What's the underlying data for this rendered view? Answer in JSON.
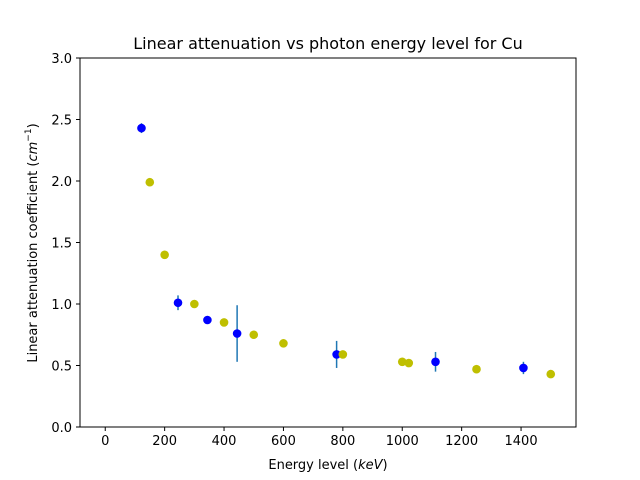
{
  "chart_data": {
    "type": "scatter",
    "title": "Linear attenuation vs photon energy level for Cu",
    "xlabel_prefix": "Energy level (",
    "xlabel_unit": "keV",
    "xlabel_suffix": ")",
    "ylabel_prefix": "Linear attenuation coefficient (",
    "ylabel_unit": "cm",
    "ylabel_exp": "−1",
    "ylabel_suffix": ")",
    "xlim": [
      -85,
      1585
    ],
    "ylim": [
      0.0,
      3.0
    ],
    "x_ticks": [
      0,
      200,
      400,
      600,
      800,
      1000,
      1200,
      1400
    ],
    "y_ticks": [
      "0.0",
      "0.5",
      "1.0",
      "1.5",
      "2.0",
      "2.5",
      "3.0"
    ],
    "grid": false,
    "series": [
      {
        "color": "#0000ff",
        "errorbar_color": "#1f77b4",
        "points": [
          {
            "x": 122,
            "y": 2.43,
            "err": 0.04
          },
          {
            "x": 245,
            "y": 1.01,
            "err": 0.06
          },
          {
            "x": 344,
            "y": 0.87,
            "err": 0.02
          },
          {
            "x": 444,
            "y": 0.76,
            "err": 0.23
          },
          {
            "x": 779,
            "y": 0.59,
            "err": 0.11
          },
          {
            "x": 1112,
            "y": 0.53,
            "err": 0.08
          },
          {
            "x": 1408,
            "y": 0.48,
            "err": 0.05
          }
        ]
      },
      {
        "color": "#bfbf00",
        "points": [
          {
            "x": 150,
            "y": 1.99
          },
          {
            "x": 200,
            "y": 1.4
          },
          {
            "x": 300,
            "y": 1.0
          },
          {
            "x": 400,
            "y": 0.85
          },
          {
            "x": 500,
            "y": 0.75
          },
          {
            "x": 600,
            "y": 0.68
          },
          {
            "x": 800,
            "y": 0.59
          },
          {
            "x": 1000,
            "y": 0.53
          },
          {
            "x": 1022,
            "y": 0.52
          },
          {
            "x": 1250,
            "y": 0.47
          },
          {
            "x": 1500,
            "y": 0.43
          }
        ]
      }
    ]
  }
}
